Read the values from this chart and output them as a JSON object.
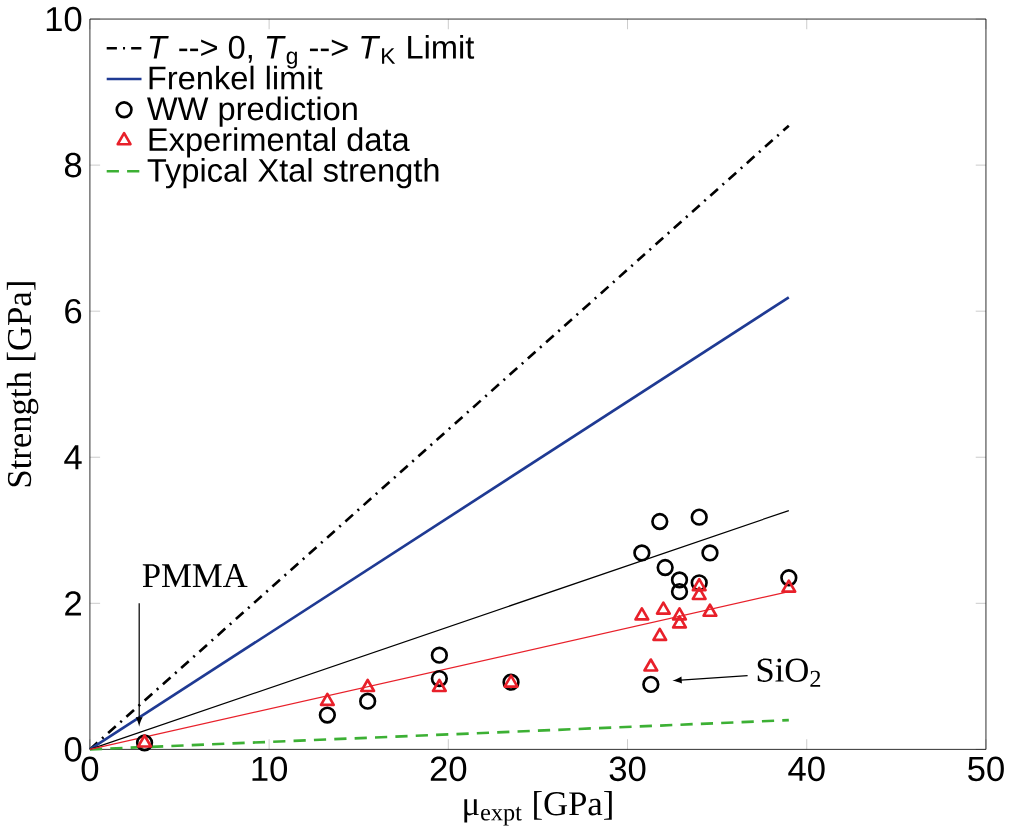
{
  "chart_data": {
    "type": "scatter",
    "xlabel": "μ$_{expt}$ [GPa]",
    "ylabel": "Strength [GPa]",
    "xlim": [
      0,
      50
    ],
    "ylim": [
      0,
      10
    ],
    "xticks": [
      0,
      10,
      20,
      30,
      40,
      50
    ],
    "yticks": [
      0,
      2,
      4,
      6,
      8,
      10
    ],
    "grid": false,
    "legend": "top left",
    "series": [
      {
        "name": "*T* --> 0, *T*$_{g}$ --> *T*$_{K}$ Limit",
        "type": "line",
        "color": "#000000",
        "line_style": "dashdot",
        "marker": "none",
        "x": [
          0,
          39
        ],
        "values": [
          0,
          8.54
        ]
      },
      {
        "name": "Frenkel limit",
        "type": "line",
        "color": "#1f3a93",
        "line_style": "solid",
        "marker": "none",
        "x": [
          0,
          39
        ],
        "values": [
          0,
          6.19
        ]
      },
      {
        "name": "WW prediction",
        "color": "#000000",
        "marker": "circle",
        "x": [
          3.05,
          13.25,
          15.5,
          19.5,
          19.5,
          23.5,
          30.8,
          31.8,
          32.1,
          32.9,
          32.9,
          34.0,
          34.0,
          34.6,
          39.0,
          31.3
        ],
        "values": [
          0.09,
          0.47,
          0.66,
          1.29,
          0.97,
          0.92,
          2.69,
          3.12,
          2.49,
          2.32,
          2.16,
          3.18,
          2.28,
          2.69,
          2.35,
          0.89
        ]
      },
      {
        "name": "Experimental data",
        "color": "#e8202a",
        "marker": "triangle",
        "x": [
          3.05,
          13.25,
          15.5,
          19.5,
          23.5,
          30.8,
          31.8,
          32.0,
          32.9,
          32.9,
          34.0,
          34.0,
          34.6,
          31.3,
          39.0
        ],
        "values": [
          0.09,
          0.66,
          0.85,
          0.85,
          0.91,
          1.83,
          1.55,
          1.91,
          1.83,
          1.72,
          2.23,
          2.11,
          1.88,
          1.13,
          2.21
        ]
      },
      {
        "name": "Typical Xtal strength",
        "type": "line",
        "color": "#3cb034",
        "line_style": "dashed",
        "marker": "none",
        "x": [
          0,
          39
        ],
        "values": [
          0,
          0.4
        ]
      },
      {
        "type": "line",
        "color": "#000000",
        "line_style": "solid",
        "marker": "none",
        "x": [
          0,
          39
        ],
        "values": [
          0,
          3.27
        ]
      },
      {
        "type": "line",
        "color": "#e8202a",
        "line_style": "solid",
        "marker": "none",
        "x": [
          0,
          39
        ],
        "values": [
          0,
          2.16
        ]
      }
    ],
    "annotations": [
      {
        "text": "PMMA",
        "x": 2.75,
        "y": 0.31
      },
      "SiO$_{2}$"
    ]
  }
}
